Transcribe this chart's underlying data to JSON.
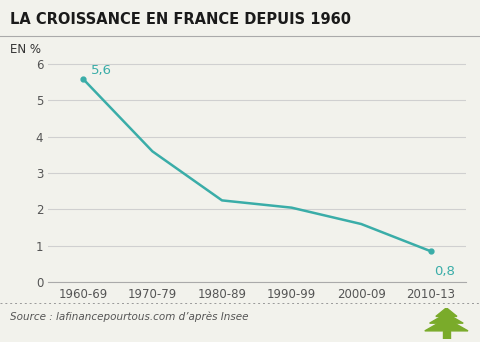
{
  "title": "LA CROISSANCE EN FRANCE DEPUIS 1960",
  "ylabel": "EN %",
  "source_text": "Source : lafinancepourtous.com d’après Insee",
  "categories": [
    "1960-69",
    "1970-79",
    "1980-89",
    "1990-99",
    "2000-09",
    "2010-13"
  ],
  "values": [
    5.6,
    3.6,
    2.25,
    2.05,
    1.6,
    0.85
  ],
  "line_color": "#3aada8",
  "annotation_color": "#3aada8",
  "ylim": [
    0,
    6.4
  ],
  "yticks": [
    0,
    1,
    2,
    3,
    4,
    5,
    6
  ],
  "grid_color": "#d0d0d0",
  "bg_color": "#f2f2ec",
  "plot_bg_color": "#f2f2ec",
  "title_fontsize": 10.5,
  "label_fontsize": 8.5,
  "tick_fontsize": 8.5,
  "source_fontsize": 7.5,
  "annotation_first": "5,6",
  "annotation_last": "0,8",
  "line_width": 1.8,
  "tree_color": "#7aab2a"
}
